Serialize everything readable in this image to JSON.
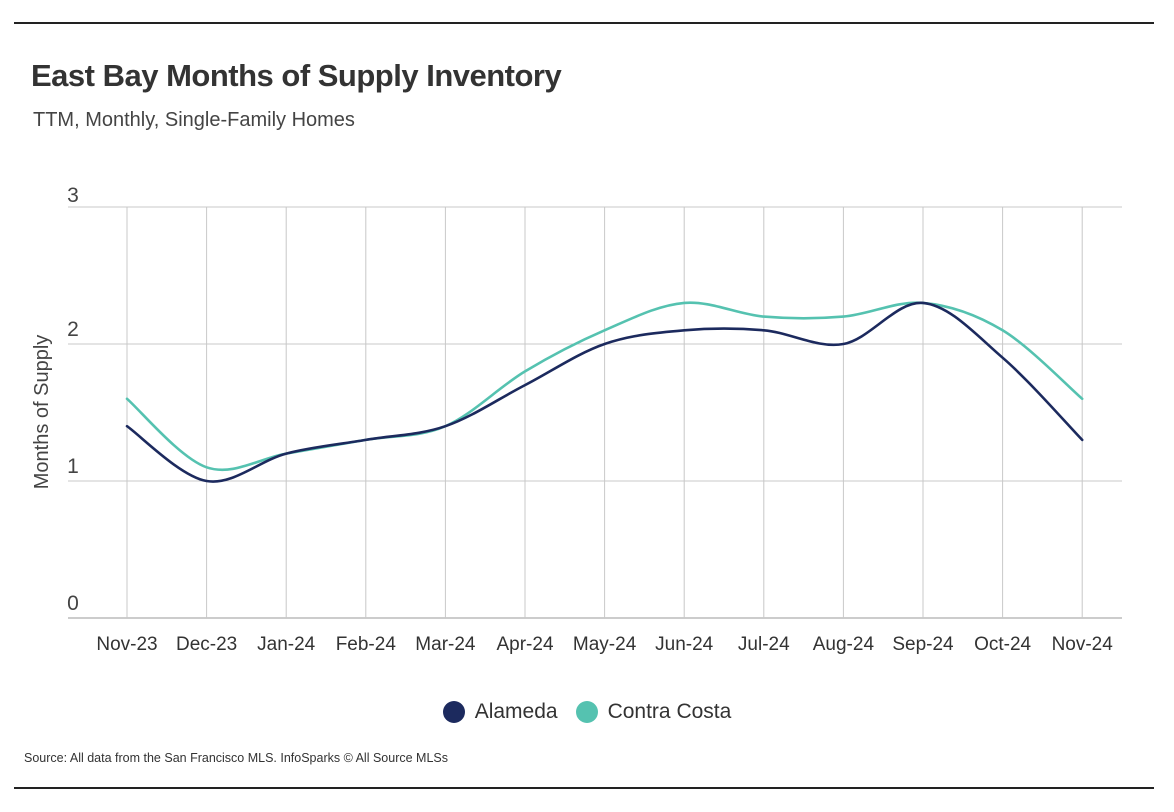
{
  "header": {
    "title": "East Bay Months of Supply Inventory",
    "subtitle": "TTM, Monthly, Single-Family Homes"
  },
  "footer": {
    "source": "Source:  All data from the San Francisco MLS. InfoSparks © All Source MLSs"
  },
  "chart_data": {
    "type": "line",
    "title": "East Bay Months of Supply Inventory",
    "subtitle": "TTM, Monthly, Single-Family Homes",
    "xlabel": "",
    "ylabel": "Months of Supply",
    "ylim": [
      0,
      3
    ],
    "yticks": [
      0,
      1,
      2,
      3
    ],
    "grid": true,
    "legend_position": "bottom-center",
    "categories": [
      "Nov-23",
      "Dec-23",
      "Jan-24",
      "Feb-24",
      "Mar-24",
      "Apr-24",
      "May-24",
      "Jun-24",
      "Jul-24",
      "Aug-24",
      "Sep-24",
      "Oct-24",
      "Nov-24"
    ],
    "series": [
      {
        "name": "Alameda",
        "color": "#1c2a5e",
        "values": [
          1.4,
          1.0,
          1.2,
          1.3,
          1.4,
          1.7,
          2.0,
          2.1,
          2.1,
          2.0,
          2.3,
          1.9,
          1.3
        ]
      },
      {
        "name": "Contra Costa",
        "color": "#55c2b0",
        "values": [
          1.6,
          1.1,
          1.2,
          1.3,
          1.4,
          1.8,
          2.1,
          2.3,
          2.2,
          2.2,
          2.3,
          2.1,
          1.6
        ]
      }
    ]
  }
}
